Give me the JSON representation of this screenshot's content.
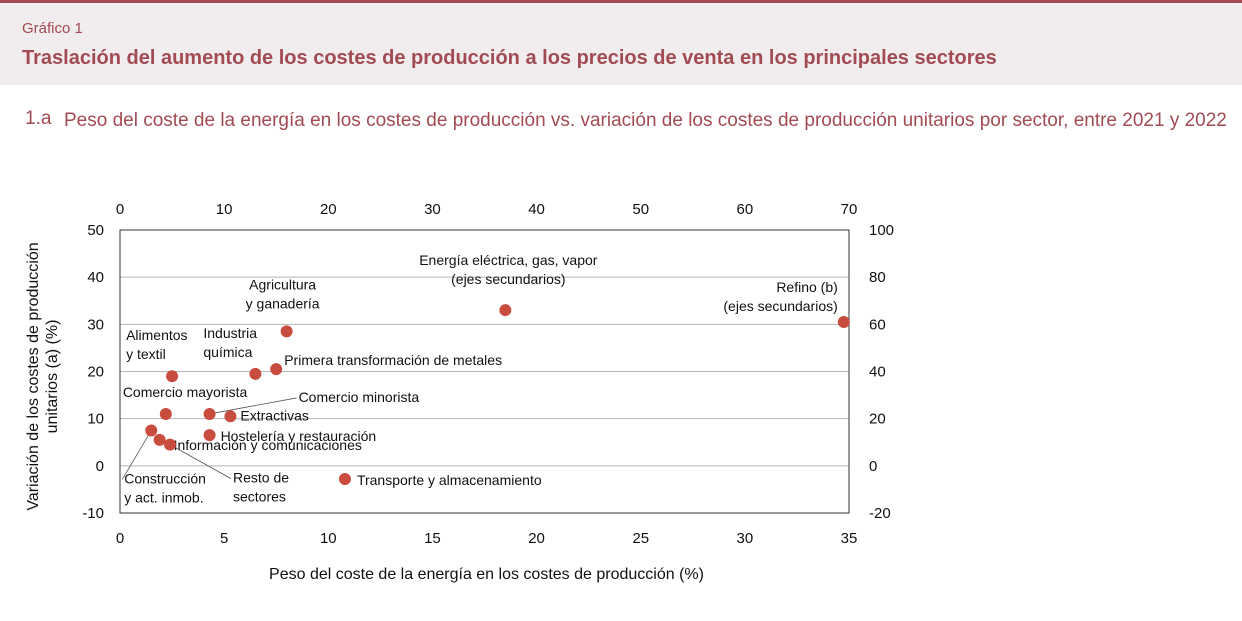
{
  "header": {
    "figure_label": "Gráfico 1",
    "title": "Traslación del aumento de los costes de producción a los precios de venta en los principales sectores"
  },
  "subchart": {
    "number": "1.a",
    "title": "Peso del coste de la energía en los costes de producción vs. variación de los costes de producción unitarios por sector, entre 2021 y 2022"
  },
  "colors": {
    "accent": "#a24b52",
    "marker": "#c94d3f",
    "header_bg": "#f1eced"
  },
  "chart_data": {
    "type": "scatter",
    "xlabel": "Peso del coste de la energía en los costes de producción (%)",
    "ylabel": "Variación de los costes de producción unitarios (a) (%)",
    "xlim": [
      0,
      35
    ],
    "ylim": [
      -10,
      50
    ],
    "x2lim": [
      0,
      70
    ],
    "y2lim": [
      -20,
      100
    ],
    "x_ticks": [
      0,
      5,
      10,
      15,
      20,
      25,
      30,
      35
    ],
    "y_ticks": [
      -10,
      0,
      10,
      20,
      30,
      40,
      50
    ],
    "x2_ticks": [
      0,
      10,
      20,
      30,
      40,
      50,
      60,
      70
    ],
    "y2_ticks": [
      -20,
      0,
      20,
      40,
      60,
      80,
      100
    ],
    "grid": "horizontal",
    "points": [
      {
        "name": "Alimentos y textil",
        "x": 2.5,
        "y": 19,
        "axes": "primary"
      },
      {
        "name": "Industria química",
        "x": 6.5,
        "y": 19.5,
        "axes": "primary"
      },
      {
        "name": "Agricultura y ganadería",
        "x": 8,
        "y": 28.5,
        "axes": "primary"
      },
      {
        "name": "Primera transformación de metales",
        "x": 7.5,
        "y": 20.5,
        "axes": "primary"
      },
      {
        "name": "Comercio mayorista",
        "x": 2.2,
        "y": 11,
        "axes": "primary"
      },
      {
        "name": "Comercio minorista",
        "x": 4.3,
        "y": 11,
        "axes": "primary"
      },
      {
        "name": "Extractivas",
        "x": 5.3,
        "y": 10.5,
        "axes": "primary"
      },
      {
        "name": "Hostelería y restauración",
        "x": 4.3,
        "y": 6.5,
        "axes": "primary"
      },
      {
        "name": "Construcción y act. inmob.",
        "x": 1.5,
        "y": 7.5,
        "axes": "primary"
      },
      {
        "name": "Información y comunicaciones",
        "x": 1.9,
        "y": 5.5,
        "axes": "primary"
      },
      {
        "name": "Resto de sectores",
        "x": 2.4,
        "y": 4.5,
        "axes": "primary"
      },
      {
        "name": "Transporte y almacenamiento",
        "x": 10.8,
        "y": -2.8,
        "axes": "primary"
      },
      {
        "name": "Energía eléctrica, gas, vapor (ejes secundarios)",
        "x": 37,
        "y": 66,
        "axes": "secondary"
      },
      {
        "name": "Refino (b) (ejes secundarios)",
        "x": 69.5,
        "y": 61,
        "axes": "secondary"
      }
    ],
    "point_labels": [
      {
        "lines": [
          "Alimentos",
          "y textil"
        ],
        "anchor": "start",
        "dx": -46,
        "dy": -36
      },
      {
        "lines": [
          "Industria",
          "química"
        ],
        "anchor": "start",
        "dx": -52,
        "dy": -36
      },
      {
        "lines": [
          "Agricultura",
          "y ganadería"
        ],
        "anchor": "middle",
        "dx": -4,
        "dy": -42
      },
      {
        "lines": [
          "Primera transformación de metales"
        ],
        "anchor": "start",
        "dx": 8,
        "dy": -4
      },
      {
        "lines": [
          "Comercio mayorista"
        ],
        "anchor": "start",
        "dx": -43,
        "dy": -17
      },
      {
        "lines": [
          "Comercio minorista"
        ],
        "anchor": "start",
        "dx": 89,
        "dy": -12,
        "leader": true
      },
      {
        "lines": [
          "Extractivas"
        ],
        "anchor": "start",
        "dx": 10,
        "dy": 4
      },
      {
        "lines": [
          "Hostelería y restauración"
        ],
        "anchor": "start",
        "dx": 11,
        "dy": 6
      },
      {
        "lines": [
          "Construcción",
          "y act. inmob."
        ],
        "anchor": "start",
        "dx": -27,
        "dy": 53,
        "leader": true
      },
      {
        "lines": [
          "Información y comunicaciones"
        ],
        "anchor": "start",
        "dx": 14,
        "dy": 10,
        "leader": true
      },
      {
        "lines": [
          "Resto de",
          "sectores"
        ],
        "anchor": "start",
        "dx": 63,
        "dy": 38,
        "leader": true
      },
      {
        "lines": [
          "Transporte y almacenamiento"
        ],
        "anchor": "start",
        "dx": 12,
        "dy": 6
      },
      {
        "lines": [
          "Energía eléctrica, gas, vapor",
          "(ejes secundarios)"
        ],
        "anchor": "middle",
        "dx": 3,
        "dy": -45
      },
      {
        "lines": [
          "Refino (b)",
          "(ejes secundarios)"
        ],
        "anchor": "end",
        "dx": -6,
        "dy": -30
      }
    ]
  }
}
